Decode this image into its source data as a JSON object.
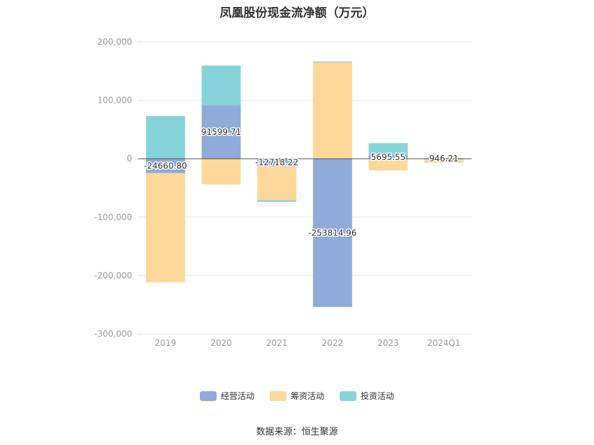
{
  "chart_data": {
    "type": "bar",
    "stacked": true,
    "title": "凤凰股份现金流净额（万元）",
    "categories": [
      "2019",
      "2020",
      "2021",
      "2022",
      "2023",
      "2024Q1"
    ],
    "ylim": [
      -300000,
      200000
    ],
    "yticks": [
      200000,
      100000,
      0,
      -100000,
      -200000,
      -300000
    ],
    "ytick_labels": [
      "200,000",
      "100,000",
      "0",
      "-100,000",
      "-200,000",
      "-300,000"
    ],
    "grid": true,
    "legend_position": "bottom",
    "series": [
      {
        "name": "经营活动",
        "color": "#8eabd9",
        "values": [
          -24660.8,
          91599.71,
          -12718.22,
          -253814.96,
          5695.55,
          946.21
        ],
        "data_labels": [
          "-24660.80",
          "91599.71",
          "-12718.22",
          "-253814.96",
          "5695.55",
          "946.21"
        ]
      },
      {
        "name": "筹资活动",
        "color": "#fed89a",
        "values": [
          -187000,
          -44000,
          -58000,
          165000,
          -20000,
          -7000
        ]
      },
      {
        "name": "投资活动",
        "color": "#86d4d9",
        "values": [
          73000,
          68000,
          -3000,
          1500,
          21000,
          0
        ]
      }
    ]
  },
  "source_text": "数据来源：恒生聚源"
}
